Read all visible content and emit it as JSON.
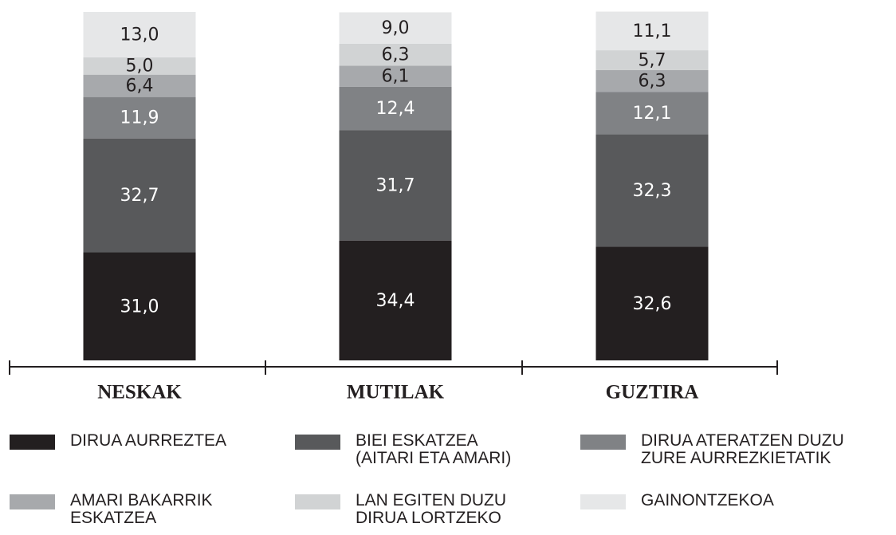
{
  "chart_data": {
    "type": "stacked_bar",
    "categories": [
      "NESKAK",
      "MUTILAK",
      "GUZTIRA"
    ],
    "ylim": [
      0,
      100
    ],
    "series": [
      {
        "name": "DIRUA AURREZTEA",
        "color": "#231f20",
        "values": [
          31.0,
          34.4,
          32.6
        ],
        "value_labels": [
          "31,0",
          "34,4",
          "32,6"
        ]
      },
      {
        "name": "BIEI ESKATZEA\n(AITARI ETA AMARI)",
        "color": "#58595b",
        "values": [
          32.7,
          31.7,
          32.3
        ],
        "value_labels": [
          "32,7",
          "31,7",
          "32,3"
        ]
      },
      {
        "name": "DIRUA ATERATZEN DUZU\nZURE AURREZKIETATIK",
        "color": "#808285",
        "values": [
          11.9,
          12.4,
          12.1
        ],
        "value_labels": [
          "11,9",
          "12,4",
          "12,1"
        ]
      },
      {
        "name": "AMARI BAKARRIK\nESKATZEA",
        "color": "#a7a9ac",
        "values": [
          6.4,
          6.1,
          6.3
        ],
        "value_labels": [
          "6,4",
          "6,1",
          "6,3"
        ]
      },
      {
        "name": "LAN EGITEN DUZU\nDIRUA LORTZEKO",
        "color": "#d1d3d4",
        "values": [
          5.0,
          6.3,
          5.7
        ],
        "value_labels": [
          "5,0",
          "6,3",
          "5,7"
        ]
      },
      {
        "name": "GAINONTZEKOA",
        "color": "#e6e7e8",
        "values": [
          13.0,
          9.0,
          11.1
        ],
        "value_labels": [
          "13,0",
          "9,0",
          "11,1"
        ]
      }
    ]
  }
}
